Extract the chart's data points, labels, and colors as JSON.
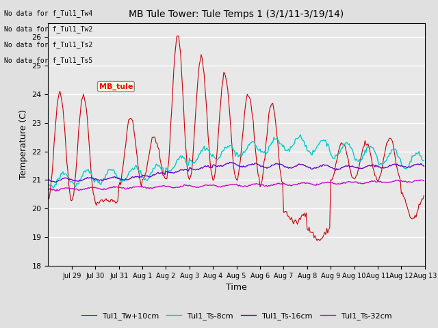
{
  "title": "MB Tule Tower: Tule Temps 1 (3/1/11-3/19/14)",
  "xlabel": "Time",
  "ylabel": "Temperature (C)",
  "ylim": [
    18.0,
    26.5
  ],
  "yticks": [
    18.0,
    19.0,
    20.0,
    21.0,
    22.0,
    23.0,
    24.0,
    25.0,
    26.0
  ],
  "bg_color": "#e8e8e8",
  "grid_color": "white",
  "colors": {
    "Tw": "#cc0000",
    "Ts8": "#00cccc",
    "Ts16": "#6600cc",
    "Ts32": "#cc00cc"
  },
  "legend_labels": [
    "Tul1_Tw+10cm",
    "Tul1_Ts-8cm",
    "Tul1_Ts-16cm",
    "Tul1_Ts-32cm"
  ],
  "no_data_texts": [
    "No data for f_Tul1_Tw4",
    "No data for f_Tul1_Tw2",
    "No data for f_Tul1_Ts2",
    "No data for f_Tul1_Ts5"
  ],
  "date_labels": [
    "Jul 29",
    "Jul 30",
    "Jul 31",
    "Aug 1",
    "Aug 2",
    "Aug 3",
    "Aug 4",
    "Aug 5",
    "Aug 6",
    "Aug 7",
    "Aug 8",
    "Aug 9",
    "Aug 10",
    "Aug 11",
    "Aug 12",
    "Aug 13"
  ],
  "daily_peaks_red": [
    24.1,
    24.0,
    20.3,
    23.2,
    22.5,
    26.1,
    25.3,
    24.7,
    24.0,
    23.7,
    19.5,
    18.9,
    22.3,
    22.3,
    22.5,
    19.6
  ],
  "daily_troughs_red": [
    20.3,
    20.3,
    20.2,
    20.8,
    21.0,
    21.0,
    21.0,
    21.0,
    21.0,
    20.8,
    19.9,
    19.3,
    21.0,
    21.0,
    21.0,
    20.5
  ]
}
